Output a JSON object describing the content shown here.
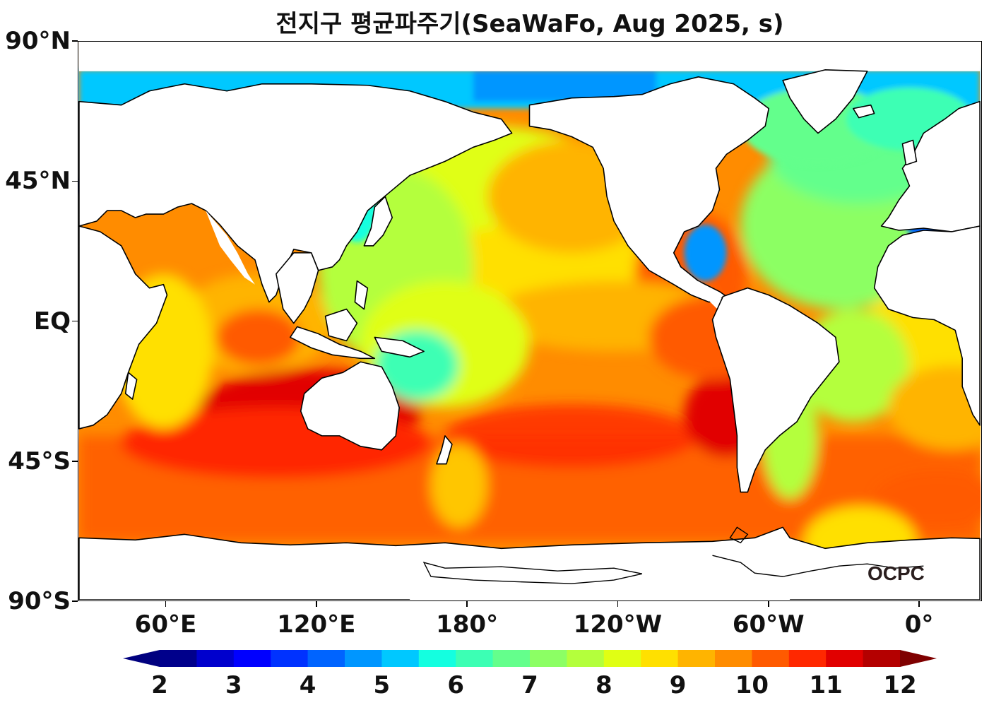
{
  "title": "전지구 평균파주기(SeaWaFo, Aug 2025, s)",
  "logo": "OCPC",
  "latitude_labels": [
    {
      "label": "90°N",
      "lat": 90
    },
    {
      "label": "45°N",
      "lat": 45
    },
    {
      "label": "EQ",
      "lat": 0
    },
    {
      "label": "45°S",
      "lat": -45
    },
    {
      "label": "90°S",
      "lat": -90
    }
  ],
  "longitude_labels": [
    {
      "label": "60°E",
      "lon": 60
    },
    {
      "label": "120°E",
      "lon": 120
    },
    {
      "label": "180°",
      "lon": 180
    },
    {
      "label": "120°W",
      "lon": 240
    },
    {
      "label": "60°W",
      "lon": 300
    },
    {
      "label": "0°",
      "lon": 360
    }
  ],
  "map_extent": {
    "lon_min": 25,
    "lon_max": 385,
    "lat_min": -90,
    "lat_max": 90
  },
  "colorbar": {
    "ticks": [
      "2",
      "3",
      "4",
      "5",
      "6",
      "7",
      "8",
      "9",
      "10",
      "11",
      "12"
    ],
    "min": 2,
    "max": 12,
    "step": 0.5,
    "extend": "both",
    "colors": [
      "#00008b",
      "#0000cd",
      "#0000ff",
      "#0032ff",
      "#0064ff",
      "#0096ff",
      "#00c8ff",
      "#14ffe0",
      "#3cffb4",
      "#64ff8c",
      "#8cff64",
      "#b4ff3c",
      "#e0ff14",
      "#ffe000",
      "#ffb400",
      "#ff8c00",
      "#ff5a00",
      "#ff2800",
      "#e10000",
      "#b40000"
    ],
    "under_color": "#00007f",
    "over_color": "#7f0000"
  },
  "colors": {
    "land": "#ffffff",
    "coastline": "#000000"
  }
}
